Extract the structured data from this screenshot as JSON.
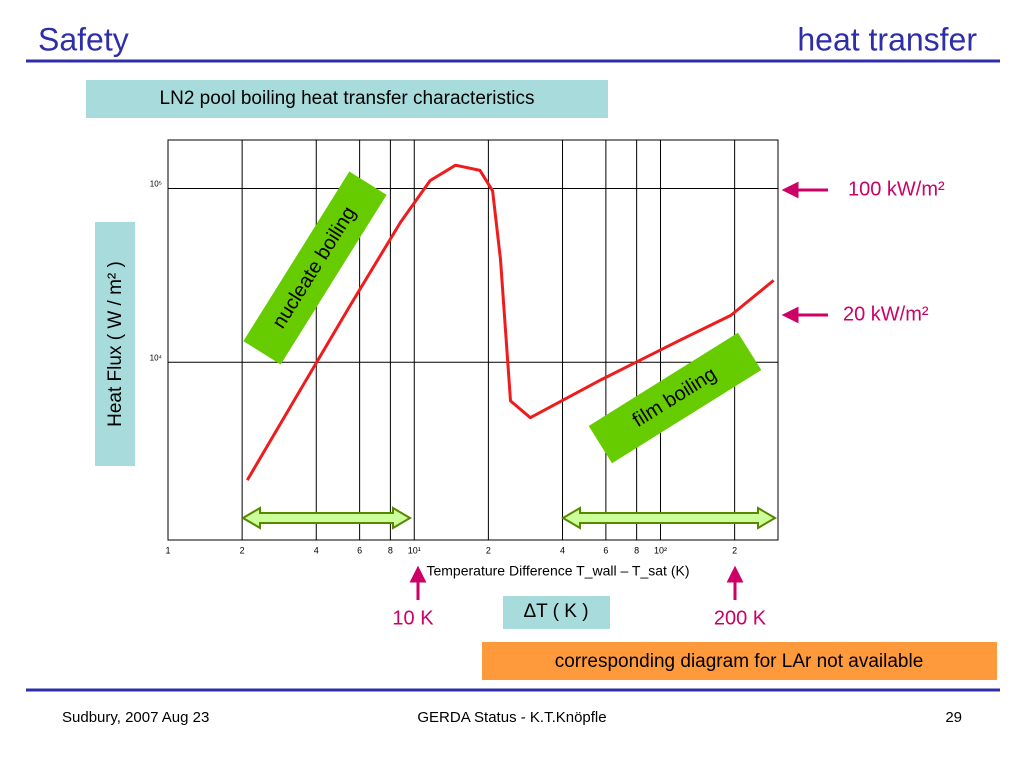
{
  "header": {
    "title": "Safety",
    "topic": "heat transfer"
  },
  "chart_data": {
    "type": "line",
    "title": "LN2 pool boiling heat transfer characteristics",
    "x_label": "Temperature Difference T_wall – T_sat  (K)",
    "y_label": "Heat Flux ( W / m² )",
    "x_scale": "log",
    "y_scale": "log",
    "grid": true,
    "color": "#ee1c1c",
    "x": [
      2.1,
      3.44,
      5.5,
      8.8,
      11.6,
      14.7,
      18.5,
      20.8,
      22.4,
      24.6,
      29.6,
      57,
      120,
      193,
      288
    ],
    "values": [
      2100,
      6900,
      21300,
      64000,
      111000,
      136000,
      127000,
      97000,
      39000,
      6000,
      4800,
      7900,
      13400,
      18600,
      29600
    ],
    "xlim": [
      1,
      300
    ],
    "ylim": [
      950,
      190000
    ],
    "xticks": [
      1,
      2,
      4,
      6,
      8,
      {
        "value": 10,
        "label": "10¹"
      },
      {
        "value": 20,
        "label": "2"
      },
      {
        "value": 40,
        "label": "4"
      },
      {
        "value": 60,
        "label": "6"
      },
      {
        "value": 80,
        "label": "8"
      },
      {
        "value": 100,
        "label": "10²"
      },
      {
        "value": 200,
        "label": "2"
      }
    ],
    "yticks": [
      {
        "value": 10000,
        "label": "10⁴"
      },
      {
        "value": 100000,
        "label": "10⁵"
      }
    ],
    "annotations": [
      "nucleate boiling",
      "film boiling",
      "100 kW/m²",
      "20 kW/m²",
      "10 K",
      "200 K",
      "ΔT ( K )"
    ],
    "footnote": "corresponding diagram for LAr not available"
  },
  "footer": {
    "left": "Sudbury, 2007 Aug 23",
    "center": "GERDA  Status - K.T.Knöpfle",
    "page": "29"
  }
}
